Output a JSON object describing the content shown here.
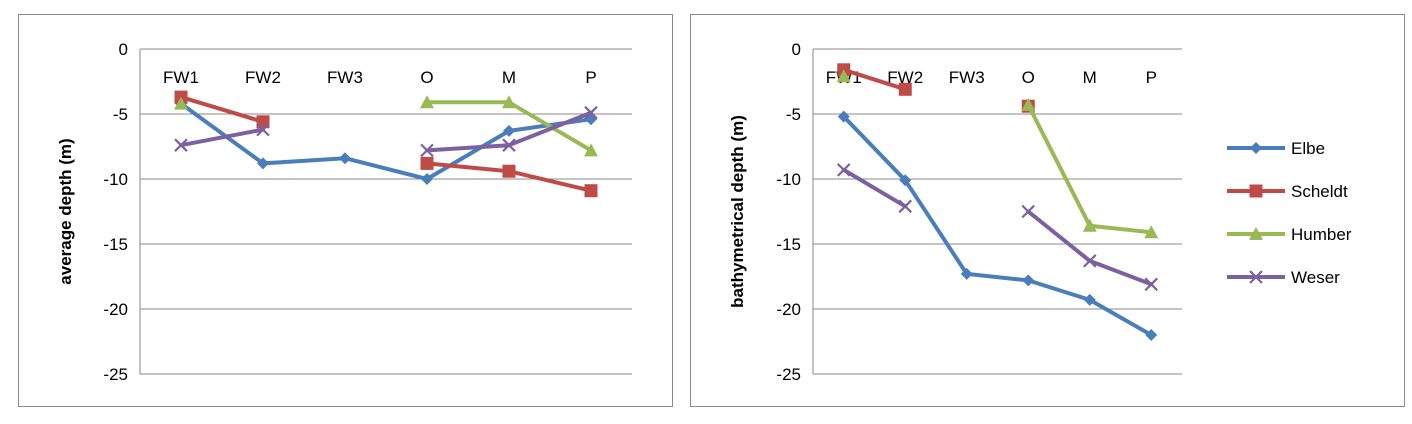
{
  "chart_data": [
    {
      "type": "line",
      "title": "",
      "xlabel": "",
      "ylabel": "average depth (m)",
      "categories": [
        "FW1",
        "FW2",
        "FW3",
        "O",
        "M",
        "P"
      ],
      "ylim": [
        -25,
        0
      ],
      "yticks": [
        0,
        -5,
        -10,
        -15,
        -20,
        -25
      ],
      "grid": true,
      "legend": "none",
      "series": [
        {
          "name": "Elbe",
          "color": "#4a7ebb",
          "marker": "diamond",
          "values": [
            -4.2,
            -8.8,
            -8.4,
            -10.0,
            -6.3,
            -5.4
          ]
        },
        {
          "name": "Scheldt",
          "color": "#be4b48",
          "marker": "square",
          "values": [
            -3.7,
            -5.6,
            null,
            -8.8,
            -9.4,
            -10.9
          ]
        },
        {
          "name": "Humber",
          "color": "#98b954",
          "marker": "triangle",
          "values": [
            -4.2,
            null,
            null,
            -4.1,
            -4.1,
            -7.8
          ]
        },
        {
          "name": "Weser",
          "color": "#7d60a0",
          "marker": "x",
          "values": [
            -7.4,
            -6.2,
            null,
            -7.8,
            -7.4,
            -4.9
          ]
        }
      ]
    },
    {
      "type": "line",
      "title": "",
      "xlabel": "",
      "ylabel": "bathymetrical depth (m)",
      "categories": [
        "FW1",
        "FW2",
        "FW3",
        "O",
        "M",
        "P"
      ],
      "ylim": [
        -25,
        0
      ],
      "yticks": [
        0,
        -5,
        -10,
        -15,
        -20,
        -25
      ],
      "grid": true,
      "legend": "right",
      "series": [
        {
          "name": "Elbe",
          "color": "#4a7ebb",
          "marker": "diamond",
          "values": [
            -5.2,
            -10.1,
            -17.3,
            -17.8,
            -19.3,
            -22.0
          ]
        },
        {
          "name": "Scheldt",
          "color": "#be4b48",
          "marker": "square",
          "values": [
            -1.6,
            -3.1,
            null,
            -4.4,
            null,
            null
          ]
        },
        {
          "name": "Humber",
          "color": "#98b954",
          "marker": "triangle",
          "values": [
            -2.1,
            null,
            null,
            -4.3,
            -13.6,
            -14.1
          ]
        },
        {
          "name": "Weser",
          "color": "#7d60a0",
          "marker": "x",
          "values": [
            -9.3,
            -12.1,
            null,
            -12.5,
            -16.3,
            -18.1
          ]
        }
      ]
    }
  ]
}
